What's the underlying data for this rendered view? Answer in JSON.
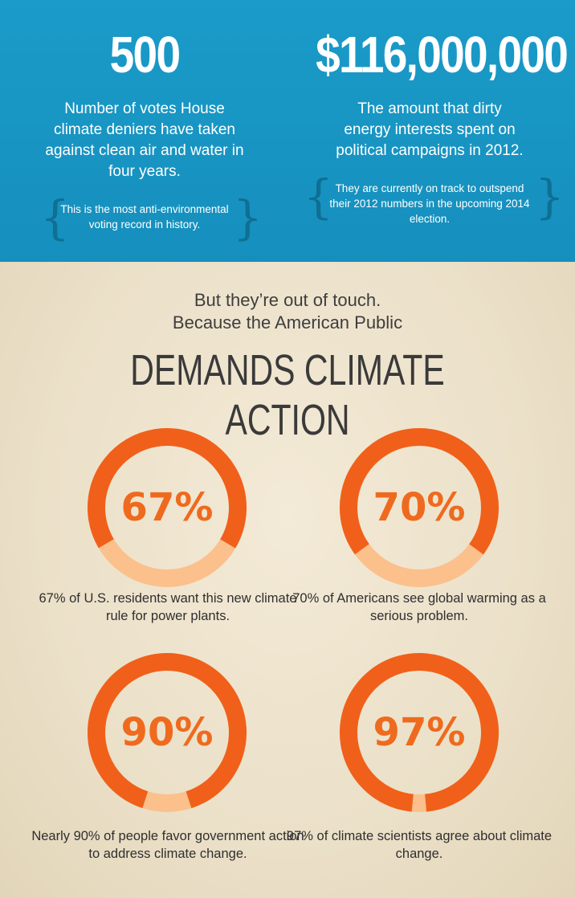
{
  "top": {
    "left": {
      "number": "500",
      "description": "Number of votes House climate deniers have taken against clean air and water in four years.",
      "note": "This is the most anti-environmental voting record in history."
    },
    "right": {
      "number": "$116,000,000",
      "description": "The amount that dirty energy interests spent on political campaigns in 2012.",
      "note": "They are currently on track to outspend their 2012 numbers in the upcoming 2014 election."
    },
    "brace_open": "{",
    "brace_close": "}"
  },
  "bottom": {
    "lead_line1": "But they’re out of touch.",
    "lead_line2": "Because the American Public",
    "headline": "DEMANDS CLIMATE ACTION",
    "stats": [
      {
        "percent": 67,
        "label": "67%",
        "caption": "67% of U.S. residents want this new climate rule for power plants."
      },
      {
        "percent": 70,
        "label": "70%",
        "caption": "70% of Americans see global warming as a serious problem."
      },
      {
        "percent": 90,
        "label": "90%",
        "caption": "Nearly 90% of people favor government action to address climate change."
      },
      {
        "percent": 97,
        "label": "97%",
        "caption": "97% of climate scientists agree about climate change."
      }
    ]
  },
  "colors": {
    "blue_band": "#1a9bc9",
    "ring_filled": "#f0601a",
    "ring_empty": "#fbc08c",
    "percent_text": "#ef6a1e"
  }
}
